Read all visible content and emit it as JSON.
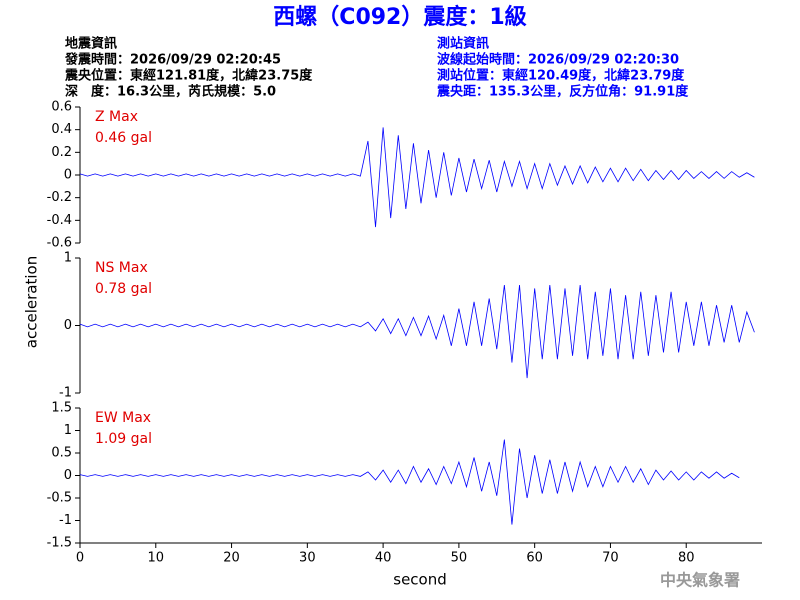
{
  "header": {
    "title": "西螺（C092）震度：1級",
    "left": [
      "地震資訊",
      "發震時間：2026/09/29 02:20:45",
      "震央位置：東經121.81度，北緯23.75度",
      "深　度：16.3公里，芮氏規模：5.0"
    ],
    "right": [
      "測站資訊",
      "波線起始時間：2026/09/29 02:20:30",
      "測站位置：東經120.49度，北緯23.79度",
      "震央距：135.3公里，反方位角：91.91度"
    ]
  },
  "chart_data": {
    "type": "line",
    "x_label": "second",
    "y_label": "acceleration",
    "xlim": [
      0,
      90
    ],
    "xticks": [
      0,
      10,
      20,
      30,
      40,
      50,
      60,
      70,
      80
    ],
    "x": [
      0,
      1,
      2,
      3,
      4,
      5,
      6,
      7,
      8,
      9,
      10,
      11,
      12,
      13,
      14,
      15,
      16,
      17,
      18,
      19,
      20,
      21,
      22,
      23,
      24,
      25,
      26,
      27,
      28,
      29,
      30,
      31,
      32,
      33,
      34,
      35,
      36,
      37,
      38,
      39,
      40,
      41,
      42,
      43,
      44,
      45,
      46,
      47,
      48,
      49,
      50,
      51,
      52,
      53,
      54,
      55,
      56,
      57,
      58,
      59,
      60,
      61,
      62,
      63,
      64,
      65,
      66,
      67,
      68,
      69,
      70,
      71,
      72,
      73,
      74,
      75,
      76,
      77,
      78,
      79,
      80,
      81,
      82,
      83,
      84,
      85,
      86,
      87,
      88,
      89
    ],
    "panels": [
      {
        "label": "Z Max",
        "max_label": "0.46 gal",
        "color": "#0000ff",
        "ylim": [
          -0.6,
          0.6
        ],
        "yticks": [
          -0.6,
          -0.4,
          -0.2,
          0,
          0.2,
          0.4,
          0.6
        ],
        "values": [
          0.01,
          -0.01,
          0.01,
          -0.01,
          0.01,
          -0.01,
          0.01,
          -0.01,
          0.01,
          -0.01,
          0.01,
          -0.01,
          0.01,
          -0.01,
          0.01,
          -0.01,
          0.01,
          -0.01,
          0.01,
          -0.01,
          0.01,
          -0.01,
          0.01,
          -0.01,
          0.01,
          -0.01,
          0.01,
          -0.01,
          0.01,
          -0.01,
          0.01,
          -0.01,
          0.01,
          -0.01,
          0.01,
          -0.01,
          0.01,
          -0.01,
          0.3,
          -0.46,
          0.42,
          -0.38,
          0.35,
          -0.3,
          0.28,
          -0.25,
          0.22,
          -0.2,
          0.2,
          -0.18,
          0.15,
          -0.15,
          0.14,
          -0.12,
          0.13,
          -0.15,
          0.12,
          -0.1,
          0.12,
          -0.12,
          0.1,
          -0.12,
          0.1,
          -0.09,
          0.08,
          -0.08,
          0.08,
          -0.07,
          0.07,
          -0.06,
          0.06,
          -0.06,
          0.06,
          -0.05,
          0.05,
          -0.05,
          0.04,
          -0.04,
          0.04,
          -0.04,
          0.04,
          -0.03,
          0.03,
          -0.03,
          0.03,
          -0.03,
          0.03,
          -0.02,
          0.02,
          -0.02
        ]
      },
      {
        "label": "NS Max",
        "max_label": "0.78 gal",
        "color": "#0000ff",
        "ylim": [
          -1,
          1
        ],
        "yticks": [
          -1,
          0,
          1
        ],
        "values": [
          0.02,
          -0.02,
          0.02,
          -0.02,
          0.02,
          -0.02,
          0.02,
          -0.02,
          0.02,
          -0.02,
          0.02,
          -0.02,
          0.02,
          -0.02,
          0.02,
          -0.02,
          0.02,
          -0.02,
          0.02,
          -0.02,
          0.02,
          -0.02,
          0.02,
          -0.02,
          0.02,
          -0.02,
          0.02,
          -0.02,
          0.02,
          -0.02,
          0.02,
          -0.02,
          0.02,
          -0.02,
          0.02,
          -0.02,
          0.02,
          -0.02,
          0.05,
          -0.08,
          0.1,
          -0.12,
          0.1,
          -0.15,
          0.12,
          -0.15,
          0.14,
          -0.2,
          0.15,
          -0.3,
          0.25,
          -0.3,
          0.35,
          -0.3,
          0.4,
          -0.35,
          0.6,
          -0.55,
          0.6,
          -0.78,
          0.55,
          -0.5,
          0.6,
          -0.5,
          0.55,
          -0.45,
          0.6,
          -0.5,
          0.5,
          -0.45,
          0.55,
          -0.5,
          0.45,
          -0.5,
          0.5,
          -0.45,
          0.45,
          -0.4,
          0.5,
          -0.4,
          0.35,
          -0.3,
          0.35,
          -0.3,
          0.3,
          -0.25,
          0.3,
          -0.25,
          0.2,
          -0.1
        ]
      },
      {
        "label": "EW Max",
        "max_label": "1.09 gal",
        "color": "#0000ff",
        "ylim": [
          -1.5,
          1.5
        ],
        "yticks": [
          -1.5,
          -1,
          -0.5,
          0,
          0.5,
          1,
          1.5
        ],
        "values": [
          0.02,
          -0.02,
          0.02,
          -0.02,
          0.02,
          -0.02,
          0.02,
          -0.02,
          0.02,
          -0.02,
          0.02,
          -0.02,
          0.02,
          -0.02,
          0.02,
          -0.02,
          0.02,
          -0.02,
          0.02,
          -0.02,
          0.02,
          -0.02,
          0.02,
          -0.02,
          0.02,
          -0.02,
          0.02,
          -0.02,
          0.02,
          -0.02,
          0.02,
          -0.02,
          0.02,
          -0.02,
          0.02,
          -0.02,
          0.02,
          -0.02,
          0.08,
          -0.1,
          0.12,
          -0.15,
          0.12,
          -0.18,
          0.2,
          -0.15,
          0.15,
          -0.2,
          0.2,
          -0.18,
          0.3,
          -0.25,
          0.4,
          -0.35,
          0.3,
          -0.45,
          0.8,
          -1.09,
          0.6,
          -0.5,
          0.45,
          -0.4,
          0.35,
          -0.4,
          0.3,
          -0.35,
          0.3,
          -0.25,
          0.2,
          -0.25,
          0.2,
          -0.15,
          0.2,
          -0.15,
          0.15,
          -0.2,
          0.12,
          -0.1,
          0.1,
          -0.1,
          0.08,
          -0.1,
          0.08,
          -0.06,
          0.08,
          -0.06,
          0.05,
          -0.05
        ]
      }
    ]
  },
  "footer": "中央氣象署"
}
